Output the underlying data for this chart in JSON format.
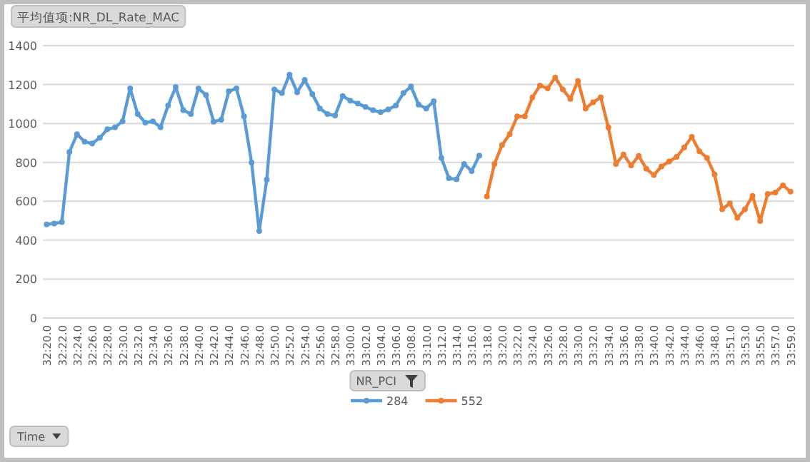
{
  "chart_data": {
    "type": "line",
    "title": "平均值项:NR_DL_Rate_MAC",
    "annotations": [
      "Time"
    ],
    "legend_title": "NR_PCI",
    "categories": [
      "32:20.0",
      null,
      "32:22.0",
      null,
      "32:24.0",
      null,
      "32:26.0",
      null,
      "32:28.0",
      null,
      "32:30.0",
      null,
      "32:32.0",
      null,
      "32:34.0",
      null,
      "32:36.0",
      null,
      "32:38.0",
      null,
      "32:40.0",
      null,
      "32:42.0",
      null,
      "32:44.0",
      null,
      "32:46.0",
      null,
      "32:48.0",
      null,
      "32:50.0",
      null,
      "32:52.0",
      null,
      "32:54.0",
      null,
      "32:56.0",
      null,
      "32:58.0",
      null,
      "33:00.0",
      null,
      "33:02.0",
      null,
      "33:04.0",
      null,
      "33:06.0",
      null,
      "33:08.0",
      null,
      "33:10.0",
      null,
      "33:12.0",
      null,
      "33:14.0",
      null,
      "33:16.0",
      null,
      "33:18.0",
      null,
      "33:20.0",
      null,
      "33:22.0",
      null,
      "33:24.0",
      null,
      "33:26.0",
      null,
      "33:28.0",
      null,
      "33:30.0",
      null,
      "33:32.0",
      null,
      "33:34.0",
      null,
      "33:36.0",
      null,
      "33:38.0",
      null,
      "33:40.0",
      null,
      "33:42.0",
      null,
      "33:44.0",
      null,
      "33:46.0",
      null,
      "33:48.0",
      null,
      "33:51.0",
      null,
      "33:53.0",
      null,
      "33:55.0",
      null,
      "33:57.0",
      null,
      "33:59.0"
    ],
    "series": [
      {
        "name": "284",
        "color": "#5b9bd5",
        "values": [
          481,
          486,
          493,
          853,
          945,
          906,
          897,
          926,
          970,
          980,
          1011,
          1180,
          1048,
          1004,
          1011,
          980,
          1092,
          1187,
          1068,
          1048,
          1180,
          1146,
          1009,
          1019,
          1165,
          1180,
          1036,
          799,
          447,
          711,
          1175,
          1156,
          1251,
          1160,
          1224,
          1151,
          1077,
          1048,
          1041,
          1141,
          1117,
          1102,
          1085,
          1068,
          1058,
          1072,
          1092,
          1156,
          1190,
          1097,
          1077,
          1114,
          823,
          718,
          713,
          792,
          755,
          835,
          null,
          null,
          null,
          null,
          null,
          null,
          null,
          null,
          null,
          null,
          null,
          null,
          null,
          null,
          null,
          null,
          null,
          null,
          null,
          null,
          null,
          null,
          null,
          null,
          null,
          null,
          null,
          null,
          null,
          null,
          null,
          null,
          null,
          null,
          null,
          null,
          null,
          null,
          null,
          null,
          null
        ]
      },
      {
        "name": "552",
        "color": "#ed7d31",
        "values": [
          null,
          null,
          null,
          null,
          null,
          null,
          null,
          null,
          null,
          null,
          null,
          null,
          null,
          null,
          null,
          null,
          null,
          null,
          null,
          null,
          null,
          null,
          null,
          null,
          null,
          null,
          null,
          null,
          null,
          null,
          null,
          null,
          null,
          null,
          null,
          null,
          null,
          null,
          null,
          null,
          null,
          null,
          null,
          null,
          null,
          null,
          null,
          null,
          null,
          null,
          null,
          null,
          null,
          null,
          null,
          null,
          null,
          null,
          625,
          792,
          889,
          945,
          1036,
          1036,
          1134,
          1195,
          1180,
          1236,
          1175,
          1126,
          1219,
          1077,
          1109,
          1134,
          980,
          792,
          840,
          784,
          833,
          767,
          735,
          779,
          804,
          828,
          877,
          931,
          857,
          823,
          738,
          559,
          589,
          515,
          559,
          628,
          498,
          638,
          645,
          682,
          650
        ]
      }
    ],
    "ylim": [
      0,
      1400
    ],
    "yticks": [
      0,
      200,
      400,
      600,
      800,
      1000,
      1200,
      1400
    ],
    "grid": "y",
    "legend": "bottom",
    "marker": "circle"
  }
}
